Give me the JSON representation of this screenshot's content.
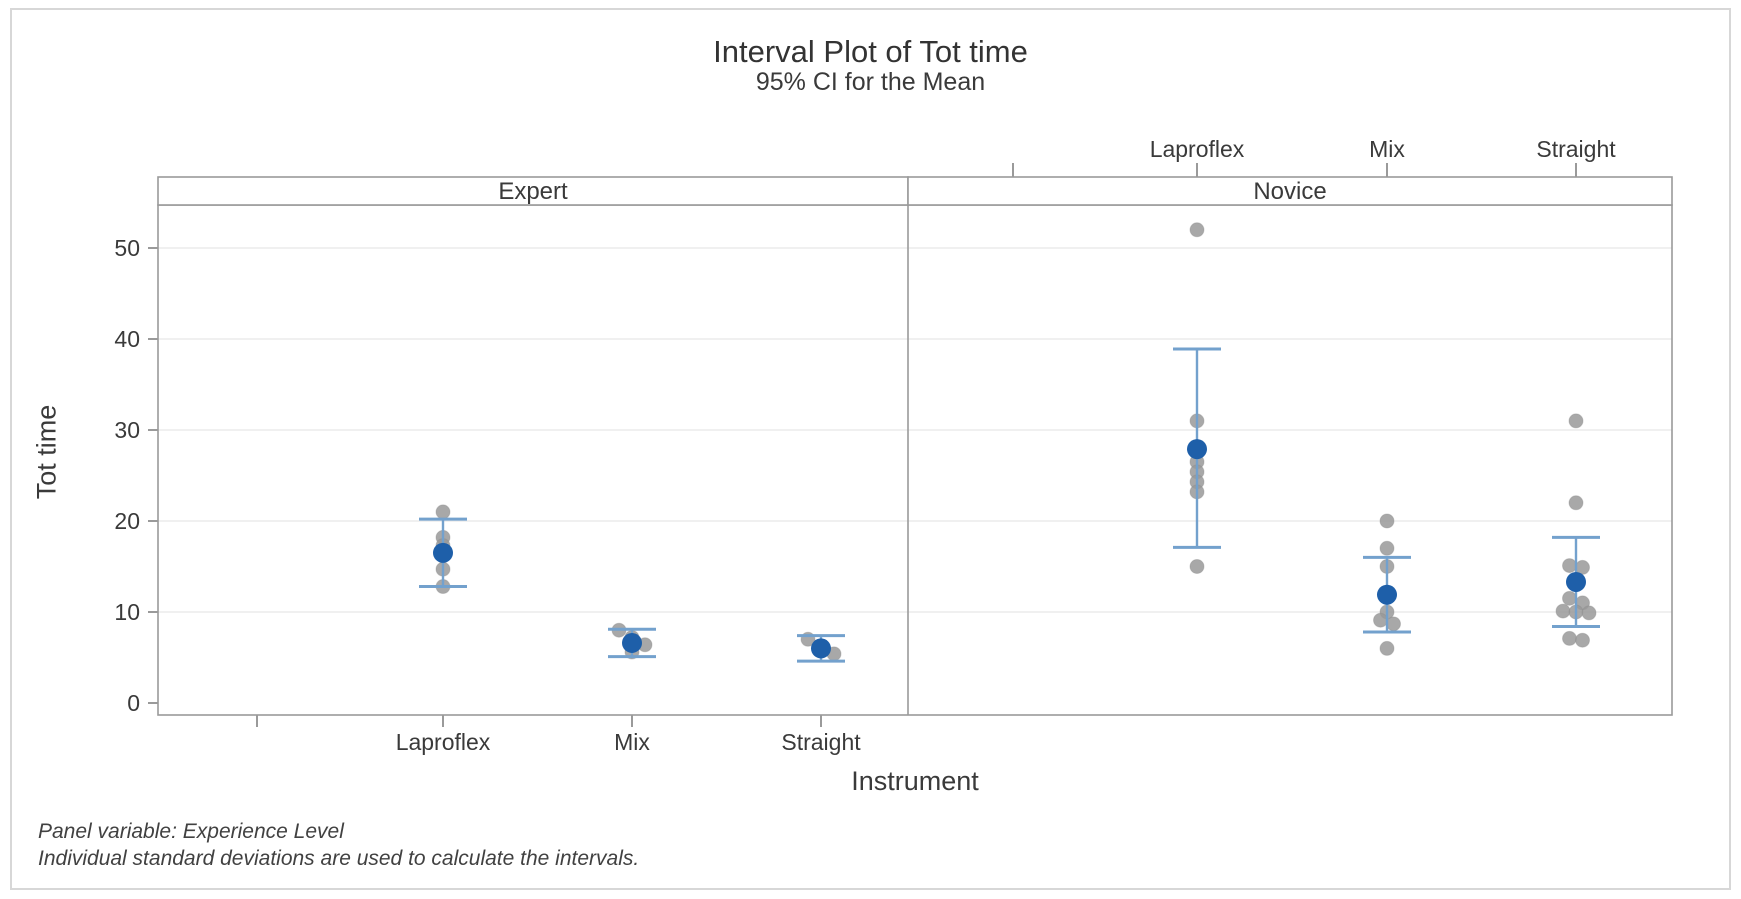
{
  "chart_data": {
    "type": "interval-dotplot",
    "title": "Interval Plot of Tot time",
    "subtitle": "95% CI for the Mean",
    "xlabel": "Instrument",
    "ylabel": "Tot time",
    "panel_variable": "Experience Level",
    "footnotes": [
      "Panel variable: Experience Level",
      "Individual standard deviations are used to calculate the intervals."
    ],
    "yticks": [
      0,
      10,
      20,
      30,
      40,
      50
    ],
    "ylim": [
      0,
      55
    ],
    "grid": "horizontal gridlines at y ticks",
    "legend": "none",
    "categories": [
      "Laproflex",
      "Mix",
      "Straight"
    ],
    "colors": {
      "mean": "#1e5fa9",
      "interval": "#73a1cd",
      "point": "#999999",
      "axis": "#9a9a9a",
      "grid": "#ececec",
      "text": "#3a3a3a"
    },
    "panels": [
      {
        "label": "Expert",
        "groups": [
          {
            "instrument": "Laproflex",
            "mean": 16.5,
            "ci95": [
              12.8,
              20.2
            ],
            "points": [
              21,
              18.2,
              17.3,
              14.7,
              12.8
            ]
          },
          {
            "instrument": "Mix",
            "mean": 6.6,
            "ci95": [
              5.1,
              8.1
            ],
            "points": [
              8,
              7.2,
              6.4,
              5.6
            ]
          },
          {
            "instrument": "Straight",
            "mean": 6.0,
            "ci95": [
              4.6,
              7.4
            ],
            "points": [
              7,
              6.2,
              5.4
            ]
          }
        ]
      },
      {
        "label": "Novice",
        "groups": [
          {
            "instrument": "Laproflex",
            "mean": 27.9,
            "ci95": [
              17.1,
              38.9
            ],
            "points": [
              52,
              31,
              26.5,
              25.4,
              24.3,
              23.2,
              15
            ]
          },
          {
            "instrument": "Mix",
            "mean": 11.9,
            "ci95": [
              7.8,
              16.0
            ],
            "points": [
              20,
              17,
              15,
              10,
              9.1,
              8.7,
              6
            ]
          },
          {
            "instrument": "Straight",
            "mean": 13.3,
            "ci95": [
              8.4,
              18.2
            ],
            "points": [
              31,
              22,
              15.1,
              14.9,
              11.5,
              11,
              10.1,
              10,
              9.9,
              7.1,
              6.9
            ]
          }
        ]
      }
    ]
  }
}
